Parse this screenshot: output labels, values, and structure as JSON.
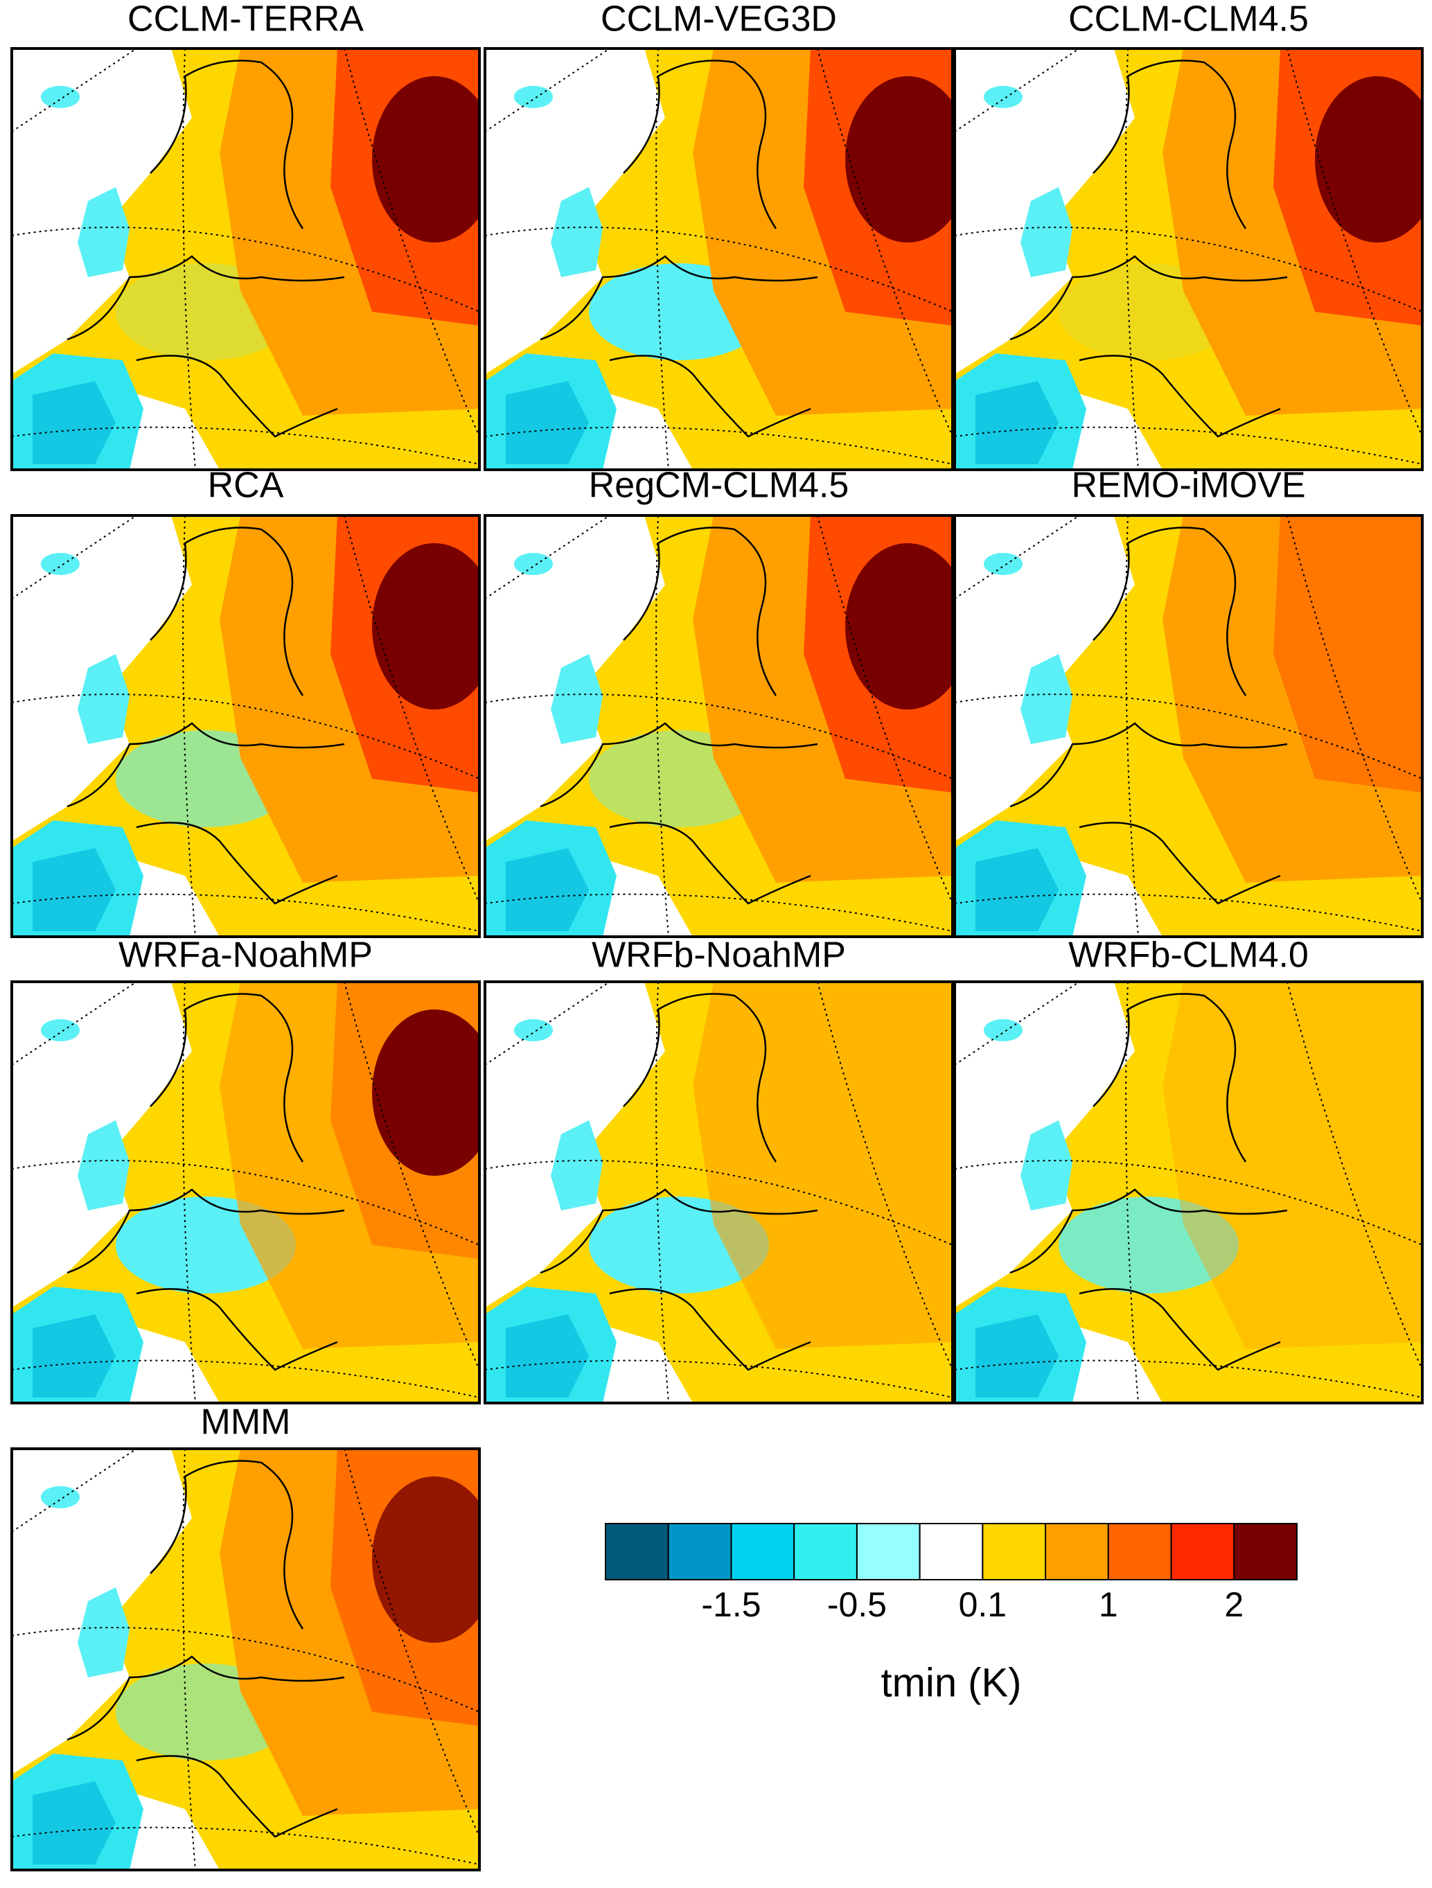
{
  "panels": [
    {
      "title": "CCLM-TERRA"
    },
    {
      "title": "CCLM-VEG3D"
    },
    {
      "title": "CCLM-CLM4.5"
    },
    {
      "title": "RCA"
    },
    {
      "title": "RegCM-CLM4.5"
    },
    {
      "title": "REMO-iMOVE"
    },
    {
      "title": "WRFa-NoahMP"
    },
    {
      "title": "WRFb-NoahMP"
    },
    {
      "title": "WRFb-CLM4.0"
    },
    {
      "title": "MMM"
    }
  ],
  "colorbar": {
    "colors": [
      "#005a7a",
      "#0096c8",
      "#00d2f0",
      "#32f0f0",
      "#96ffff",
      "#ffffff",
      "#ffd700",
      "#ffa000",
      "#ff6400",
      "#ff2800",
      "#780000"
    ],
    "levels": [
      -2,
      -1.5,
      -1,
      -0.5,
      -0.1,
      0.1,
      0.5,
      1,
      1.5,
      2
    ],
    "ticks": [
      -1.5,
      -0.5,
      0.1,
      1,
      2
    ],
    "label": "tmin (K)"
  }
}
